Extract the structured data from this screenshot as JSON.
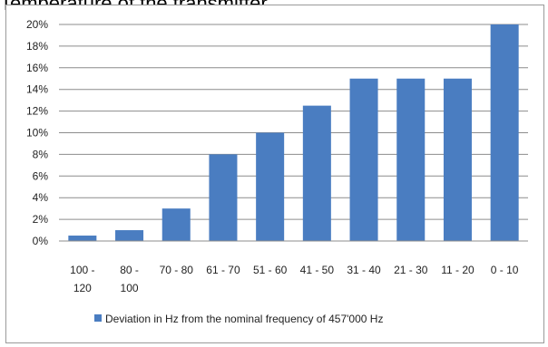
{
  "heading": "Temperature of the transmitter",
  "chart_data": {
    "type": "bar",
    "categories": [
      "100 - 120",
      "80 - 100",
      "70 - 80",
      "61 - 70",
      "51 - 60",
      "41 - 50",
      "31 - 40",
      "21 - 30",
      "11 - 20",
      "0 - 10"
    ],
    "category_label_lines": [
      [
        "100 -",
        "120"
      ],
      [
        "80 -",
        "100"
      ],
      [
        "70 - 80"
      ],
      [
        "61 - 70"
      ],
      [
        "51 - 60"
      ],
      [
        "41 - 50"
      ],
      [
        "31 - 40"
      ],
      [
        "21 - 30"
      ],
      [
        "11 - 20"
      ],
      [
        "0 - 10"
      ]
    ],
    "series": [
      {
        "name": "Deviation in Hz from the nominal frequency of 457'000 Hz",
        "color": "#4a7dc1",
        "values": [
          0.5,
          1,
          3,
          8,
          10,
          12.5,
          15,
          15,
          15,
          20
        ]
      }
    ],
    "ylim": [
      0,
      20
    ],
    "yticks": [
      "0%",
      "2%",
      "4%",
      "6%",
      "8%",
      "10%",
      "12%",
      "14%",
      "16%",
      "18%",
      "20%"
    ],
    "grid": true,
    "legend": "bottom"
  }
}
